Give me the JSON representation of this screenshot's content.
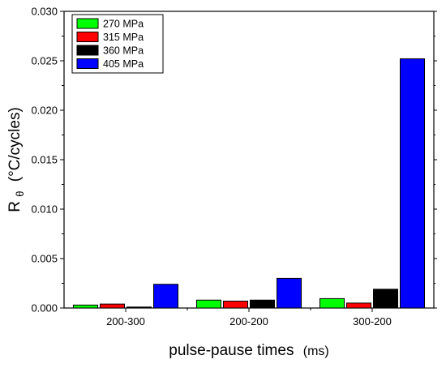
{
  "chart_data": {
    "type": "bar",
    "title": "",
    "xlabel": "pulse-pause times",
    "xlabel_unit": "(ms)",
    "ylabel": "R",
    "ylabel_subscript": "θ",
    "ylabel_unit": "(°C/cycles)",
    "categories": [
      "200-300",
      "200-200",
      "300-200"
    ],
    "ylim": [
      0,
      0.03
    ],
    "yticks": [
      "0.000",
      "0.005",
      "0.010",
      "0.015",
      "0.020",
      "0.025",
      "0.030"
    ],
    "series": [
      {
        "name": "270 MPa",
        "color": "#00ff00",
        "values": [
          0.0003,
          0.0008,
          0.00095
        ]
      },
      {
        "name": "315 MPa",
        "color": "#ff0000",
        "values": [
          0.0004,
          0.0007,
          0.0005
        ]
      },
      {
        "name": "360 MPa",
        "color": "#000000",
        "values": [
          0.0001,
          0.0008,
          0.0019
        ]
      },
      {
        "name": "405 MPa",
        "color": "#0000ff",
        "values": [
          0.0024,
          0.003,
          0.0252
        ]
      }
    ],
    "grid": false,
    "legend_position": "top-left"
  }
}
